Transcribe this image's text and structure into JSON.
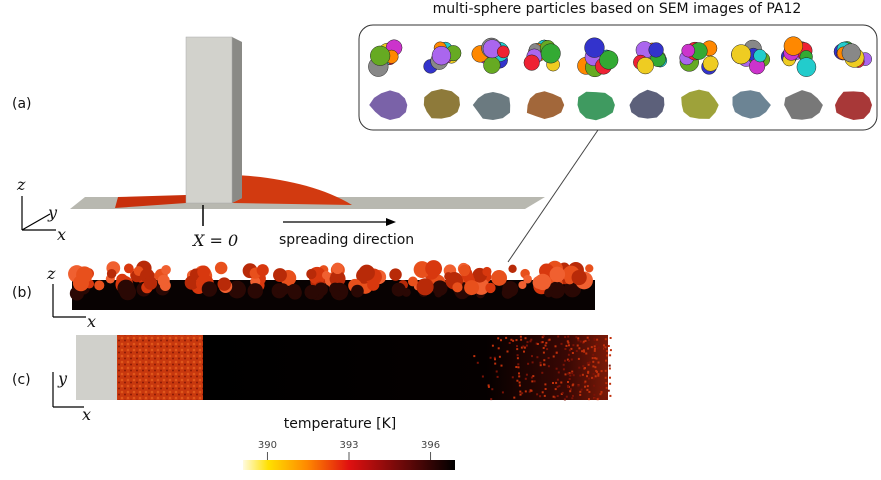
{
  "inset": {
    "title": "multi-sphere particles based on SEM images of PA12"
  },
  "panels": {
    "a": "(a)",
    "b": "(b)",
    "c": "(c)"
  },
  "axes": {
    "a": {
      "z": "z",
      "y": "y",
      "x": "x"
    },
    "b": {
      "z": "z",
      "x": "x"
    },
    "c": {
      "y": "y",
      "x": "x"
    }
  },
  "annotations": {
    "origin": "X = 0",
    "direction": "spreading direction"
  },
  "colorbar": {
    "label": "temperature [K]",
    "range": [
      389.1,
      396.9
    ],
    "ticks": [
      390,
      393,
      396
    ]
  }
}
